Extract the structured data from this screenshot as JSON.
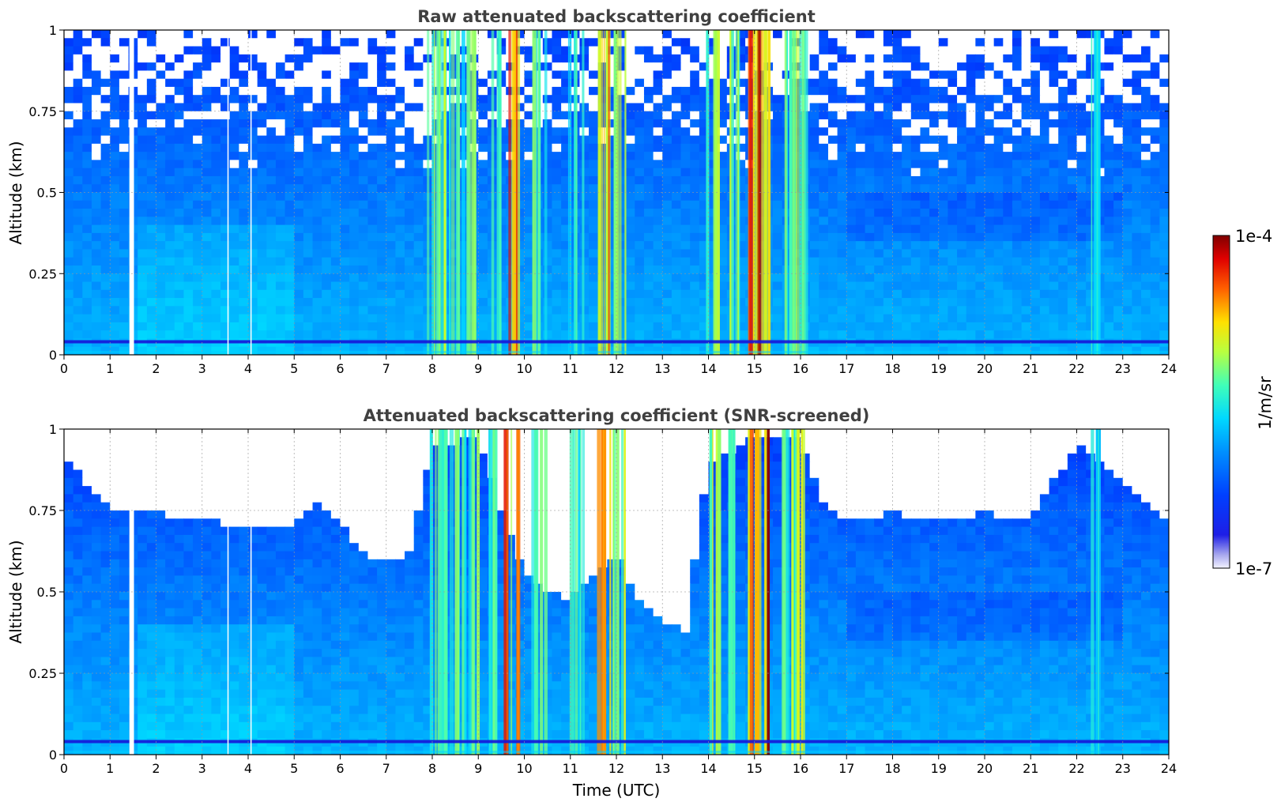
{
  "chart_data": [
    {
      "type": "heatmap",
      "title": "Raw attenuated backscattering coefficient",
      "xlabel": "",
      "ylabel": "Altitude (km)",
      "xlim": [
        0,
        24
      ],
      "ylim": [
        0,
        1
      ],
      "xticks": [
        "0",
        "1",
        "2",
        "3",
        "4",
        "5",
        "6",
        "7",
        "8",
        "9",
        "10",
        "11",
        "12",
        "13",
        "14",
        "15",
        "16",
        "17",
        "18",
        "19",
        "20",
        "21",
        "22",
        "23",
        "24"
      ],
      "yticks": [
        "0",
        "0.25",
        "0.5",
        "0.75",
        "1"
      ],
      "grid": true,
      "screened": false,
      "data_gaps_utc": [
        [
          1.42,
          1.52
        ],
        [
          3.55,
          3.57
        ],
        [
          4.05,
          4.07
        ]
      ],
      "cloud_columns": [
        {
          "time_utc": 8.0,
          "level": 0.62
        },
        {
          "time_utc": 8.3,
          "level": 0.66
        },
        {
          "time_utc": 8.55,
          "level": 0.58
        },
        {
          "time_utc": 8.85,
          "level": 0.6
        },
        {
          "time_utc": 9.3,
          "level": 0.55
        },
        {
          "time_utc": 9.7,
          "level": 0.9
        },
        {
          "time_utc": 10.3,
          "level": 0.6
        },
        {
          "time_utc": 11.1,
          "level": 0.55
        },
        {
          "time_utc": 11.7,
          "level": 0.85
        },
        {
          "time_utc": 12.05,
          "level": 0.72
        },
        {
          "time_utc": 14.1,
          "level": 0.7
        },
        {
          "time_utc": 14.55,
          "level": 0.65
        },
        {
          "time_utc": 14.95,
          "level": 0.92
        },
        {
          "time_utc": 15.15,
          "level": 0.95
        },
        {
          "time_utc": 15.7,
          "level": 0.62
        },
        {
          "time_utc": 15.95,
          "level": 0.68
        },
        {
          "time_utc": 22.4,
          "level": 0.5
        }
      ]
    },
    {
      "type": "heatmap",
      "title": "Attenuated backscattering coefficient (SNR-screened)",
      "xlabel": "Time (UTC)",
      "ylabel": "Altitude (km)",
      "xlim": [
        0,
        24
      ],
      "ylim": [
        0,
        1
      ],
      "xticks": [
        "0",
        "1",
        "2",
        "3",
        "4",
        "5",
        "6",
        "7",
        "8",
        "9",
        "10",
        "11",
        "12",
        "13",
        "14",
        "15",
        "16",
        "17",
        "18",
        "19",
        "20",
        "21",
        "22",
        "23",
        "24"
      ],
      "yticks": [
        "0",
        "0.25",
        "0.5",
        "0.75",
        "1"
      ],
      "grid": true,
      "screened": true,
      "data_gaps_utc": [
        [
          1.42,
          1.52
        ],
        [
          3.55,
          3.57
        ],
        [
          4.05,
          4.07
        ]
      ],
      "cloud_columns": [
        {
          "time_utc": 8.0,
          "level": 0.62
        },
        {
          "time_utc": 8.3,
          "level": 0.66
        },
        {
          "time_utc": 8.55,
          "level": 0.58
        },
        {
          "time_utc": 8.85,
          "level": 0.6
        },
        {
          "time_utc": 9.3,
          "level": 0.55
        },
        {
          "time_utc": 9.7,
          "level": 0.9
        },
        {
          "time_utc": 10.3,
          "level": 0.6
        },
        {
          "time_utc": 11.1,
          "level": 0.55
        },
        {
          "time_utc": 11.7,
          "level": 0.85
        },
        {
          "time_utc": 12.05,
          "level": 0.72
        },
        {
          "time_utc": 14.1,
          "level": 0.7
        },
        {
          "time_utc": 14.55,
          "level": 0.65
        },
        {
          "time_utc": 14.95,
          "level": 0.92
        },
        {
          "time_utc": 15.15,
          "level": 0.95
        },
        {
          "time_utc": 15.7,
          "level": 0.62
        },
        {
          "time_utc": 15.95,
          "level": 0.68
        },
        {
          "time_utc": 22.4,
          "level": 0.5
        }
      ],
      "screened_top_altitude_km": [
        [
          0.0,
          0.93
        ],
        [
          0.5,
          0.83
        ],
        [
          1.0,
          0.76
        ],
        [
          2.0,
          0.74
        ],
        [
          3.0,
          0.72
        ],
        [
          4.0,
          0.7
        ],
        [
          5.0,
          0.7
        ],
        [
          5.5,
          0.78
        ],
        [
          6.0,
          0.72
        ],
        [
          6.5,
          0.62
        ],
        [
          7.0,
          0.6
        ],
        [
          7.5,
          0.62
        ],
        [
          8.0,
          0.95
        ],
        [
          9.0,
          0.97
        ],
        [
          10.0,
          0.55
        ],
        [
          10.5,
          0.5
        ],
        [
          11.0,
          0.48
        ],
        [
          12.0,
          0.62
        ],
        [
          12.5,
          0.48
        ],
        [
          13.0,
          0.42
        ],
        [
          13.5,
          0.38
        ],
        [
          14.0,
          0.9
        ],
        [
          15.0,
          0.97
        ],
        [
          16.0,
          0.97
        ],
        [
          16.5,
          0.78
        ],
        [
          17.0,
          0.72
        ],
        [
          18.0,
          0.74
        ],
        [
          19.0,
          0.73
        ],
        [
          20.0,
          0.74
        ],
        [
          21.0,
          0.73
        ],
        [
          22.0,
          0.95
        ],
        [
          23.0,
          0.85
        ],
        [
          24.0,
          0.7
        ]
      ]
    }
  ],
  "colorbar": {
    "label": "1/m/sr",
    "min_label": "1e-7",
    "max_label": "1e-4",
    "scale": "log",
    "colormap": "jet"
  }
}
